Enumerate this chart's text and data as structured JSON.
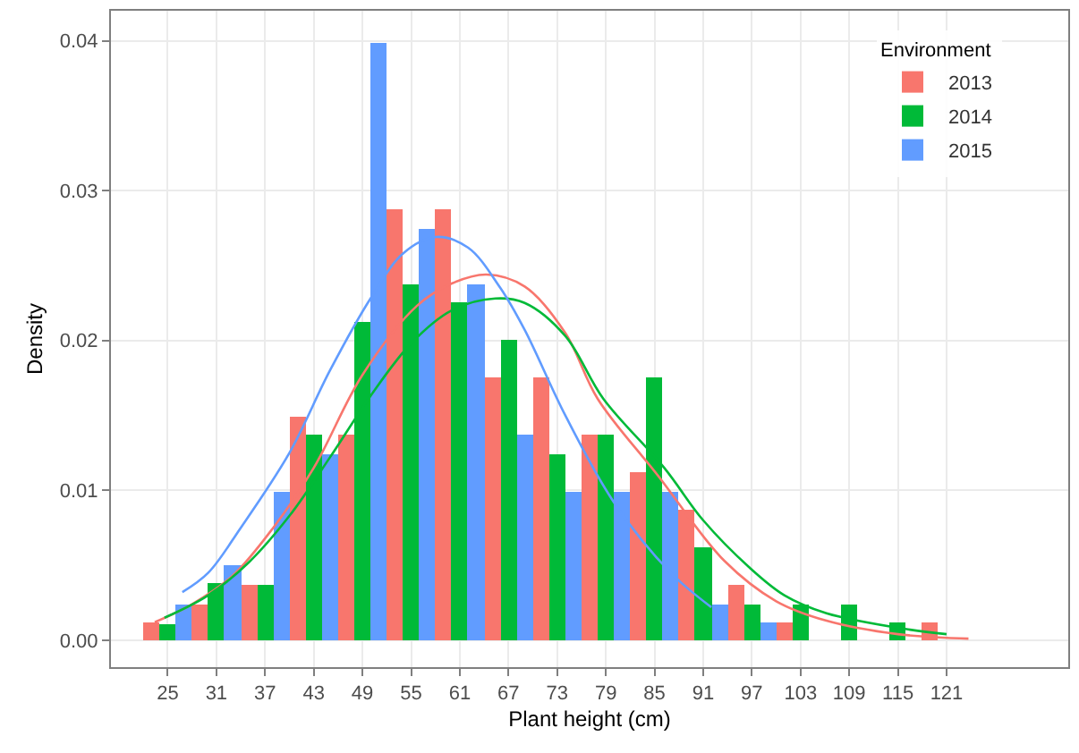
{
  "chart_data": {
    "type": "bar",
    "xlabel": "Plant height (cm)",
    "ylabel": "Density",
    "legend_title": "Environment",
    "legend": "top right",
    "grid": true,
    "x": [
      25,
      31,
      37,
      43,
      49,
      55,
      61,
      67,
      73,
      79,
      85,
      91,
      97,
      103,
      109,
      115,
      121
    ],
    "xlim": [
      18,
      136
    ],
    "xticks": [
      25,
      31,
      37,
      43,
      49,
      55,
      61,
      67,
      73,
      79,
      85,
      91,
      97,
      103,
      109,
      115,
      121
    ],
    "ylim": [
      -0.0018,
      0.042
    ],
    "yticks": [
      {
        "value": 0,
        "label": "0.00"
      },
      {
        "value": 0.01,
        "label": "0.01"
      },
      {
        "value": 0.02,
        "label": "0.02"
      },
      {
        "value": 0.03,
        "label": "0.03"
      },
      {
        "value": 0.04,
        "label": "0.04"
      }
    ],
    "series": [
      {
        "name": "2013",
        "color": "#f8766d",
        "values": [
          0.0012,
          0.0024,
          0.0037,
          0.0149,
          0.0137,
          0.0287,
          0.0287,
          0.0175,
          0.0175,
          0.0137,
          0.0112,
          0.0087,
          0.0037,
          0.0012,
          0,
          0,
          0.0012
        ]
      },
      {
        "name": "2014",
        "color": "#00ba38",
        "values": [
          0.0011,
          0.0038,
          0.0037,
          0.0137,
          0.0212,
          0.0237,
          0.0225,
          0.02,
          0.0124,
          0.0137,
          0.0175,
          0.0062,
          0.0024,
          0.0024,
          0.0024,
          0.0012,
          0
        ]
      },
      {
        "name": "2015",
        "color": "#619cff",
        "values": [
          0.0024,
          0.005,
          0.0099,
          0.0124,
          0.0399,
          0.0274,
          0.0237,
          0.0137,
          0.0099,
          0.0099,
          0.0099,
          0.0024,
          0.0012,
          0,
          0,
          0,
          0
        ]
      },
      {
        "type": "line",
        "color": "#f8766d",
        "x": [
          23.4,
          28,
          33,
          38,
          43,
          49,
          55.7,
          60,
          64.3,
          69,
          74,
          78,
          85.4,
          93.6,
          100,
          106.2,
          115,
          123.7
        ],
        "values": [
          0.0012,
          0.0024,
          0.0043,
          0.0075,
          0.0115,
          0.0177,
          0.0223,
          0.0238,
          0.0244,
          0.0236,
          0.0205,
          0.0161,
          0.011,
          0.0053,
          0.0026,
          0.0013,
          0.0004,
          0.0001
        ]
      },
      {
        "type": "line",
        "color": "#00ba38",
        "x": [
          24.6,
          30,
          35,
          40,
          45,
          50,
          55,
          60,
          65.4,
          69,
          74,
          78.7,
          86.2,
          91,
          96.6,
          101,
          106.2,
          116.5,
          121
        ],
        "values": [
          0.0015,
          0.003,
          0.0052,
          0.0083,
          0.0122,
          0.0163,
          0.0198,
          0.022,
          0.0228,
          0.0225,
          0.0203,
          0.0161,
          0.0115,
          0.008,
          0.0049,
          0.003,
          0.0018,
          0.0007,
          0.0004
        ]
      },
      {
        "type": "line",
        "color": "#619cff",
        "x": [
          26.8,
          30,
          34,
          40,
          45,
          50,
          54,
          58,
          62,
          66,
          69,
          74,
          80,
          87,
          92
        ],
        "values": [
          0.0032,
          0.0045,
          0.0075,
          0.0125,
          0.018,
          0.0228,
          0.0258,
          0.0269,
          0.0262,
          0.0235,
          0.0207,
          0.015,
          0.0092,
          0.0045,
          0.0022
        ]
      }
    ]
  }
}
